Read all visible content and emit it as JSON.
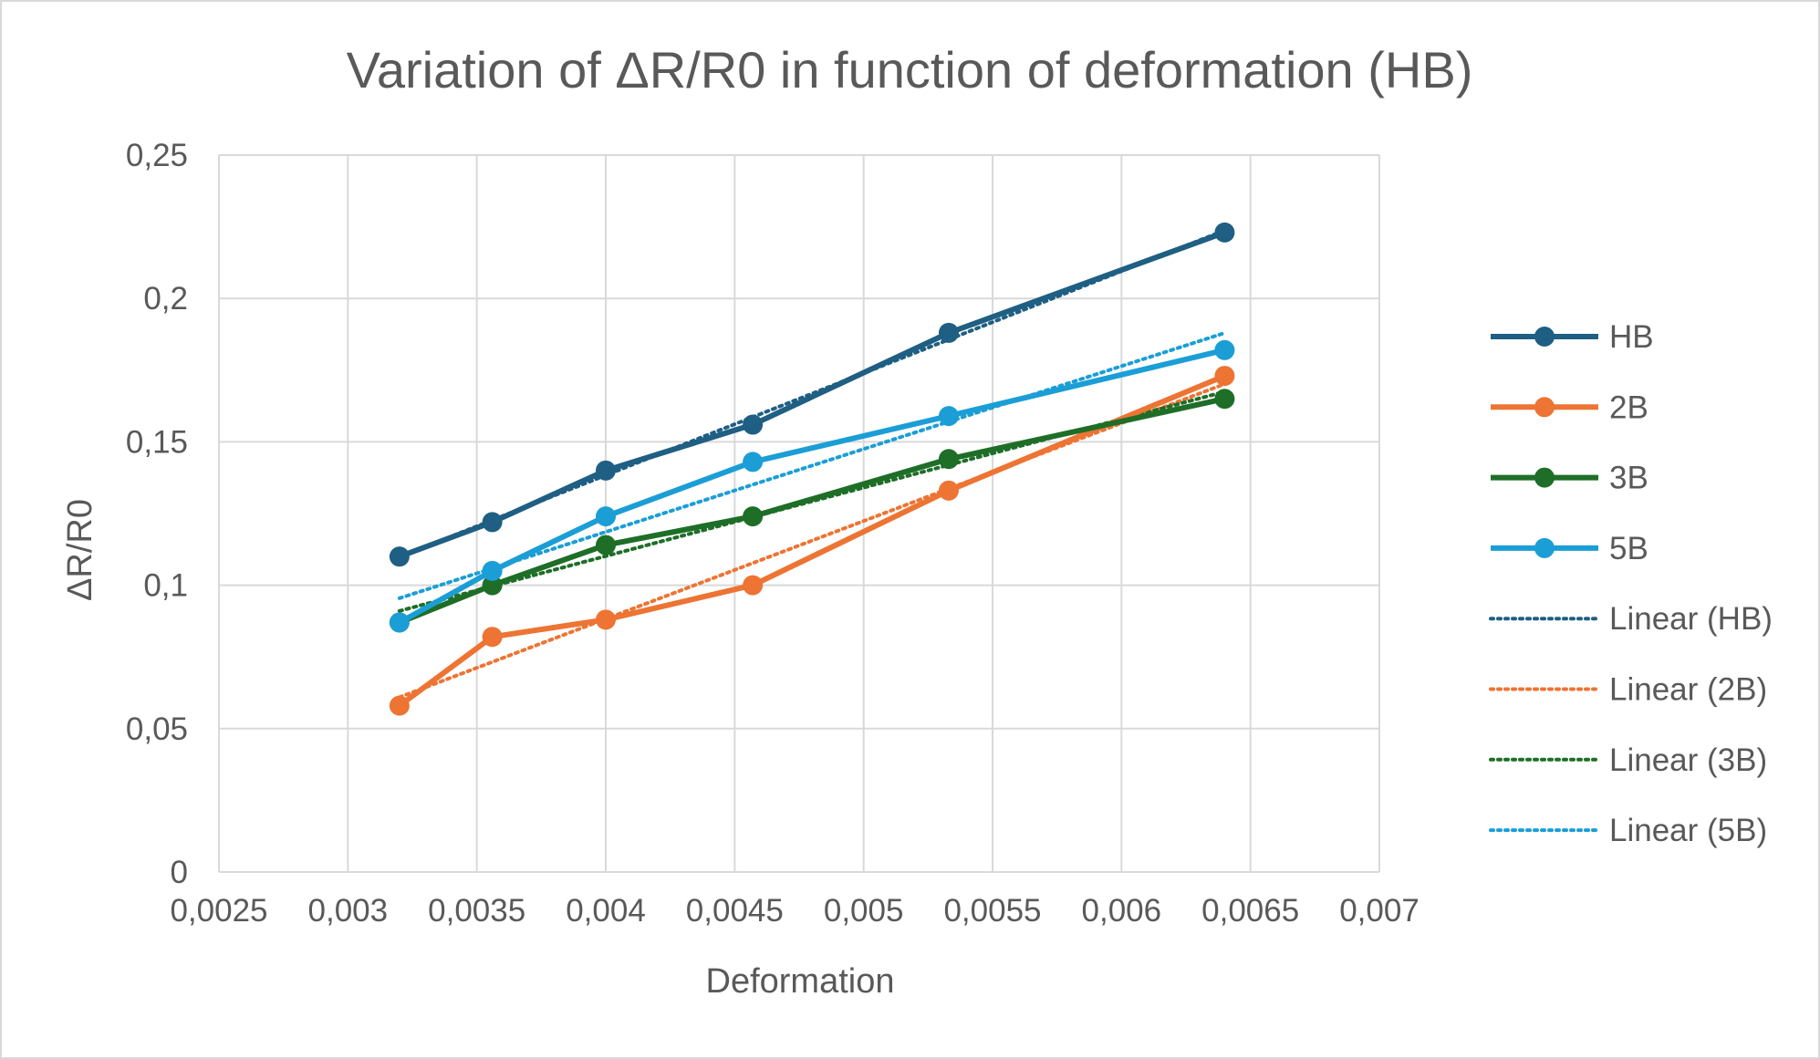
{
  "chart_data": {
    "type": "scatter",
    "title": "Variation of ΔR/R0 in function of deformation (HB)",
    "xlabel": "Deformation",
    "ylabel": "ΔR/R0",
    "xlim": [
      0.0025,
      0.007
    ],
    "ylim": [
      0,
      0.25
    ],
    "x_ticks": [
      "0,0025",
      "0,003",
      "0,0035",
      "0,004",
      "0,0045",
      "0,005",
      "0,0055",
      "0,006",
      "0,0065",
      "0,007"
    ],
    "y_ticks": [
      "0",
      "0,05",
      "0,1",
      "0,15",
      "0,2",
      "0,25"
    ],
    "grid": true,
    "legend_position": "right",
    "x": [
      0.0032,
      0.00356,
      0.004,
      0.00457,
      0.00533,
      0.0064
    ],
    "series": [
      {
        "name": "HB",
        "color": "#1f5f83",
        "values": [
          0.11,
          0.122,
          0.14,
          0.156,
          0.188,
          0.223
        ]
      },
      {
        "name": "2B",
        "color": "#ed7433",
        "values": [
          0.058,
          0.082,
          0.088,
          0.1,
          0.133,
          0.173
        ]
      },
      {
        "name": "3B",
        "color": "#1e6e27",
        "values": [
          0.087,
          0.1,
          0.114,
          0.124,
          0.144,
          0.165
        ]
      },
      {
        "name": "5B",
        "color": "#1b9ed6",
        "values": [
          0.087,
          0.105,
          0.124,
          0.143,
          0.159,
          0.182
        ]
      }
    ],
    "trendlines": [
      {
        "name": "Linear (HB)",
        "color": "#1f5f83",
        "of": "HB"
      },
      {
        "name": "Linear (2B)",
        "color": "#ed7433",
        "of": "2B"
      },
      {
        "name": "Linear (3B)",
        "color": "#1e6e27",
        "of": "3B"
      },
      {
        "name": "Linear (5B)",
        "color": "#1b9ed6",
        "of": "5B"
      }
    ]
  }
}
